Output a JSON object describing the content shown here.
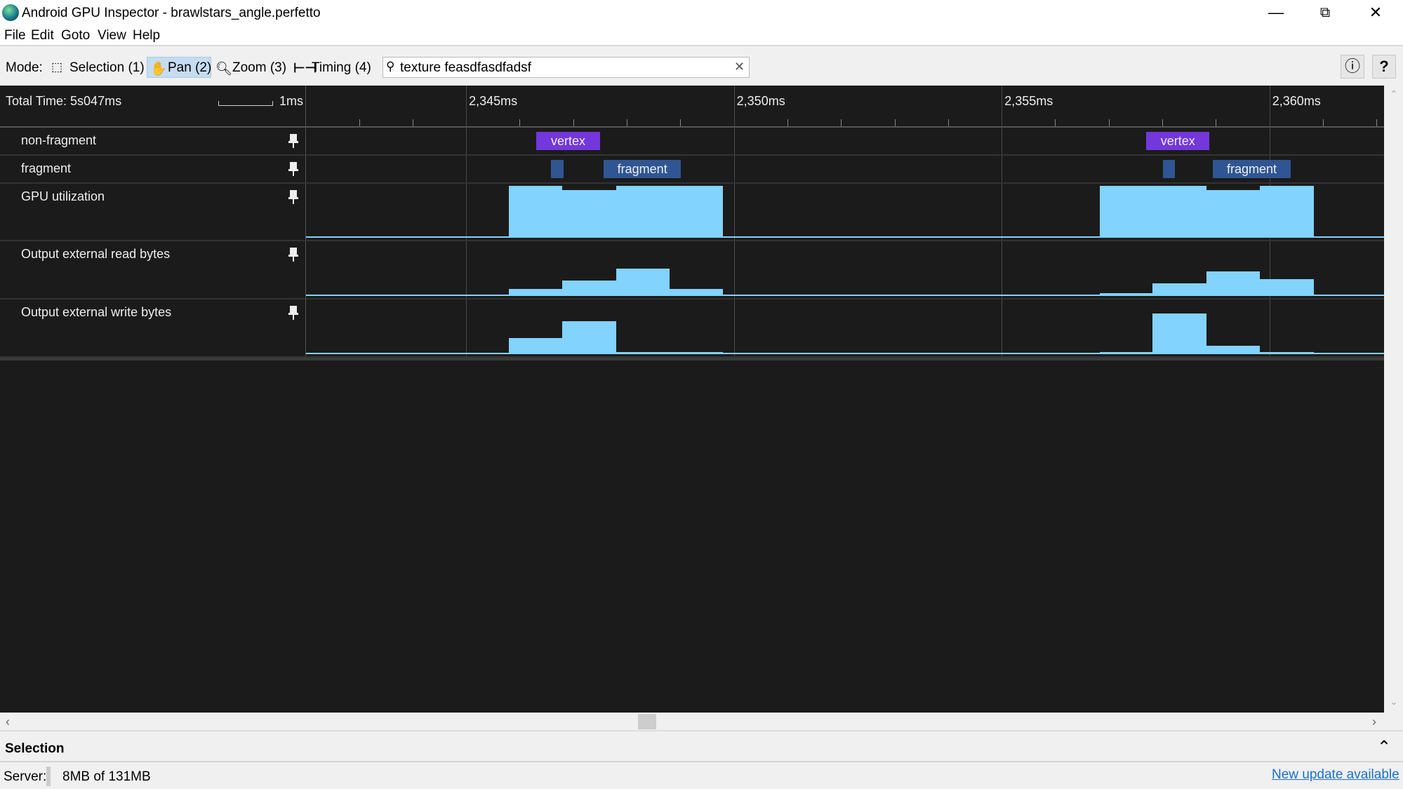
{
  "window": {
    "title": "Android GPU Inspector - brawlstars_angle.perfetto",
    "controls": [
      "minimize",
      "restore",
      "close"
    ]
  },
  "menu": [
    "File",
    "Edit",
    "Goto",
    "View",
    "Help"
  ],
  "toolbar": {
    "mode_label": "Mode:",
    "modes": [
      {
        "label": "Selection (1)",
        "icon": "selection-icon"
      },
      {
        "label": "Pan (2)",
        "icon": "hand-icon",
        "active": true
      },
      {
        "label": "Zoom (3)",
        "icon": "zoom-icon"
      },
      {
        "label": "Timing (4)",
        "icon": "timing-icon"
      }
    ],
    "search_value": "texture feasdfasdfadsf",
    "info_icon": "info-icon",
    "help_icon": "help-icon"
  },
  "timeline": {
    "total_time": "Total Time: 5s047ms",
    "scale_label": "1ms",
    "range_ms": [
      2342.01,
      2362.14
    ],
    "tick_labels": [
      {
        "t": 2345,
        "label": "2,345ms"
      },
      {
        "t": 2350,
        "label": "2,350ms"
      },
      {
        "t": 2355,
        "label": "2,355ms"
      },
      {
        "t": 2360,
        "label": "2,360ms"
      }
    ],
    "colors": {
      "background": "#1b1b1b",
      "vertex": "#7337db",
      "fragment": "#2f5693",
      "counter": "#82d3fe"
    },
    "tracks": [
      {
        "name": "non-fragment",
        "type": "slices",
        "slices": [
          {
            "label": "vertex",
            "start": 2346.31,
            "end": 2347.5,
            "color": "#7337db"
          },
          {
            "label": "vertex",
            "start": 2357.7,
            "end": 2358.88,
            "color": "#7337db"
          }
        ]
      },
      {
        "name": "fragment",
        "type": "slices",
        "slices": [
          {
            "label": "",
            "start": 2346.59,
            "end": 2346.82,
            "color": "#2f5693"
          },
          {
            "label": "fragment",
            "start": 2347.57,
            "end": 2349.01,
            "color": "#2f5693"
          },
          {
            "label": "",
            "start": 2358.01,
            "end": 2358.24,
            "color": "#2f5693"
          },
          {
            "label": "fragment",
            "start": 2358.94,
            "end": 2360.4,
            "color": "#2f5693"
          }
        ]
      },
      {
        "name": "GPU utilization",
        "type": "counter",
        "buckets": [
          {
            "start": 2345.8,
            "end": 2346.8,
            "v": 1
          },
          {
            "start": 2346.8,
            "end": 2347.8,
            "v": 0.92
          },
          {
            "start": 2347.8,
            "end": 2348.8,
            "v": 1
          },
          {
            "start": 2348.8,
            "end": 2349.8,
            "v": 1
          },
          {
            "start": 2356.83,
            "end": 2357.82,
            "v": 1
          },
          {
            "start": 2357.82,
            "end": 2358.83,
            "v": 1
          },
          {
            "start": 2358.83,
            "end": 2359.82,
            "v": 0.92
          },
          {
            "start": 2359.82,
            "end": 2360.83,
            "v": 1
          }
        ]
      },
      {
        "name": "Output external read bytes",
        "type": "counter",
        "buckets": [
          {
            "start": 2345.8,
            "end": 2346.8,
            "v": 0.12
          },
          {
            "start": 2346.8,
            "end": 2347.8,
            "v": 0.29
          },
          {
            "start": 2347.8,
            "end": 2348.8,
            "v": 0.52
          },
          {
            "start": 2348.8,
            "end": 2349.8,
            "v": 0.12
          },
          {
            "start": 2356.83,
            "end": 2357.82,
            "v": 0.04
          },
          {
            "start": 2357.82,
            "end": 2358.83,
            "v": 0.23
          },
          {
            "start": 2358.83,
            "end": 2359.82,
            "v": 0.47
          },
          {
            "start": 2359.82,
            "end": 2360.83,
            "v": 0.32
          }
        ]
      },
      {
        "name": "Output external write bytes",
        "type": "counter",
        "buckets": [
          {
            "start": 2345.8,
            "end": 2346.8,
            "v": 0.3
          },
          {
            "start": 2346.8,
            "end": 2347.8,
            "v": 0.63
          },
          {
            "start": 2347.8,
            "end": 2348.8,
            "v": 0.03
          },
          {
            "start": 2348.8,
            "end": 2349.8,
            "v": 0.02
          },
          {
            "start": 2356.83,
            "end": 2357.82,
            "v": 0.02
          },
          {
            "start": 2357.82,
            "end": 2358.83,
            "v": 0.78
          },
          {
            "start": 2358.83,
            "end": 2359.82,
            "v": 0.15
          },
          {
            "start": 2359.82,
            "end": 2360.83,
            "v": 0.01
          }
        ]
      }
    ]
  },
  "selection_panel": {
    "title": "Selection"
  },
  "status": {
    "server_label": "Server:",
    "memory": "8MB of 131MB",
    "update_link": "New update available"
  }
}
